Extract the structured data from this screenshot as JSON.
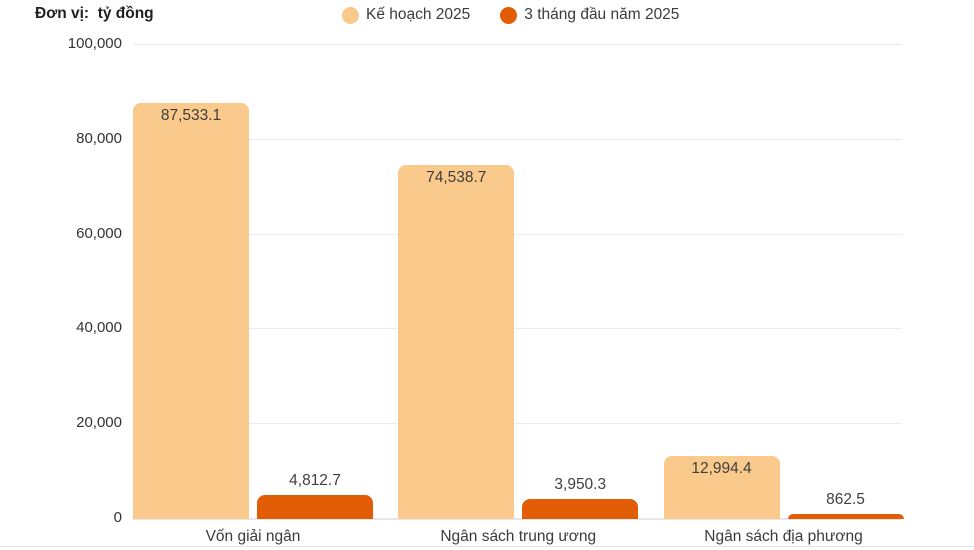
{
  "unit_label": "Đơn vị:  tỷ đồng",
  "legend": [
    {
      "label": "Kế hoạch 2025",
      "color": "#FAC98C"
    },
    {
      "label": "3 tháng đầu năm 2025",
      "color": "#E35D07"
    }
  ],
  "chart_data": {
    "type": "bar",
    "title": "",
    "xlabel": "",
    "ylabel": "Đơn vị: tỷ đồng",
    "categories": [
      "Vốn giải ngân",
      "Ngân sách trung ương",
      "Ngân sách địa phương"
    ],
    "series": [
      {
        "name": "Kế hoạch 2025",
        "color": "#FAC98C",
        "values": [
          87533.1,
          74538.7,
          12994.4
        ],
        "labels": [
          "87,533.1",
          "74,538.7",
          "12,994.4"
        ],
        "label_position": "inside"
      },
      {
        "name": "3 tháng đầu năm 2025",
        "color": "#E35D07",
        "values": [
          4812.7,
          3950.3,
          862.5
        ],
        "labels": [
          "4,812.7",
          "3,950.3",
          "862.5"
        ],
        "label_position": "outside"
      }
    ],
    "ylim": [
      0,
      100000
    ],
    "yticks": [
      0,
      20000,
      40000,
      60000,
      80000,
      100000
    ],
    "ytick_labels": [
      "0",
      "20,000",
      "40,000",
      "60,000",
      "80,000",
      "100,000"
    ],
    "grid": true,
    "legend_position": "top"
  }
}
